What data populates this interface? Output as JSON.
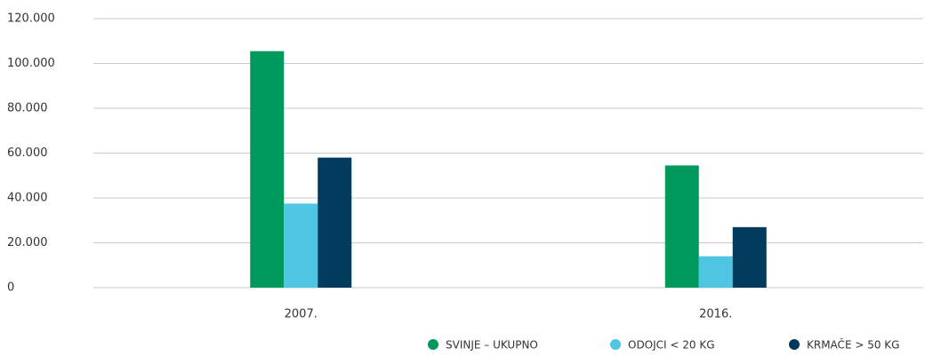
{
  "chart_data": {
    "type": "bar",
    "categories": [
      "2007.",
      "2016."
    ],
    "series": [
      {
        "name": "SVINJE – UKUPNO",
        "color": "#00995c",
        "values": [
          105500,
          54500
        ]
      },
      {
        "name": "ODOJCI < 20 KG",
        "color": "#4fc6e1",
        "values": [
          37500,
          14000
        ]
      },
      {
        "name": "KRMAČE > 50 KG",
        "color": "#003a5c",
        "values": [
          58000,
          27000
        ]
      }
    ],
    "ylim": [
      0,
      120000
    ],
    "yticks": [
      0,
      {
        "value": 20000,
        "label": "20.000"
      },
      {
        "value": 40000,
        "label": "40.000"
      },
      {
        "value": 60000,
        "label": "60.000"
      },
      {
        "value": 80000,
        "label": "80.000"
      },
      {
        "value": 100000,
        "label": "100.000"
      },
      {
        "value": 120000,
        "label": "120.000"
      }
    ],
    "grid": true,
    "legend": "bottom-right"
  }
}
